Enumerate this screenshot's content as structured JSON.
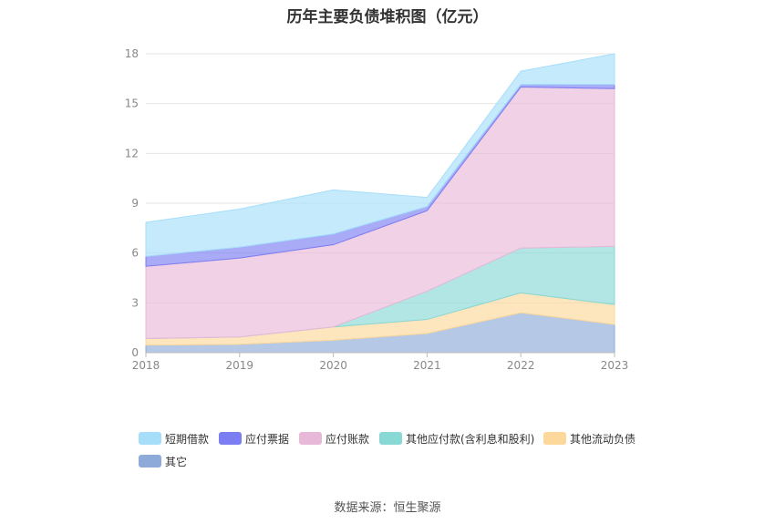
{
  "title": "历年主要负债堆积图（亿元）",
  "source": "数据来源：恒生聚源",
  "chart_data": {
    "type": "area",
    "stacked": true,
    "categories": [
      "2018",
      "2019",
      "2020",
      "2021",
      "2022",
      "2023"
    ],
    "ylim": [
      0,
      18
    ],
    "yticks": [
      0,
      3,
      6,
      9,
      12,
      15,
      18
    ],
    "grid": true,
    "legend_position": "bottom",
    "series": [
      {
        "name": "其它",
        "color": "#8eaad8",
        "values": [
          0.45,
          0.5,
          0.75,
          1.15,
          2.4,
          1.7
        ]
      },
      {
        "name": "其他流动负债",
        "color": "#fcd99b",
        "values": [
          0.4,
          0.45,
          0.8,
          0.85,
          1.2,
          1.2
        ]
      },
      {
        "name": "其他应付款(含利息和股利)",
        "color": "#88d8d6",
        "values": [
          0.0,
          0.0,
          0.0,
          1.7,
          2.7,
          3.5
        ]
      },
      {
        "name": "应付账款",
        "color": "#e8b8d8",
        "values": [
          4.35,
          4.75,
          4.95,
          4.85,
          9.7,
          9.5
        ]
      },
      {
        "name": "应付票据",
        "color": "#7b7ef2",
        "values": [
          0.6,
          0.65,
          0.65,
          0.25,
          0.15,
          0.25
        ]
      },
      {
        "name": "短期借款",
        "color": "#a6defa",
        "values": [
          2.05,
          2.3,
          2.65,
          0.55,
          0.8,
          1.85
        ]
      }
    ]
  },
  "legend_order": [
    {
      "label": "短期借款",
      "color": "#a6defa"
    },
    {
      "label": "应付票据",
      "color": "#7b7ef2"
    },
    {
      "label": "应付账款",
      "color": "#e8b8d8"
    },
    {
      "label": "其他应付款(含利息和股利)",
      "color": "#88d8d6"
    },
    {
      "label": "其他流动负债",
      "color": "#fcd99b"
    },
    {
      "label": "其它",
      "color": "#8eaad8"
    }
  ]
}
